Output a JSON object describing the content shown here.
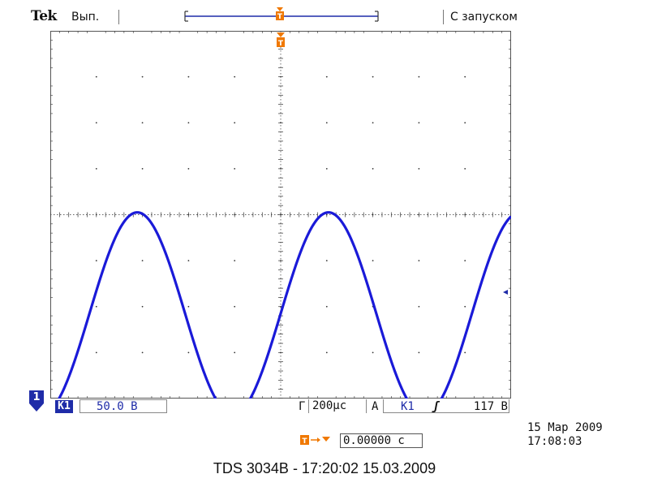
{
  "header": {
    "brand": "Tek",
    "run_status": "Вып.",
    "trigger_mode": "С запуском"
  },
  "channel": {
    "marker_label": "1",
    "badge": "K1",
    "volts_per_div": "50.0 В"
  },
  "horizontal": {
    "label": "Г",
    "time_per_div": "200µс"
  },
  "trigger": {
    "label": "A",
    "source": "K1",
    "slope_glyph": "ʃ",
    "level": "117 В",
    "position": "0.00000 с"
  },
  "timestamp": {
    "date": "15 Мар 2009",
    "time": "17:08:03"
  },
  "caption": "TDS 3034B - 17:20:02   15.03.2009",
  "colors": {
    "trace": "#1a1ad8",
    "trigger_marker": "#f07800",
    "channel_badge": "#1f2ca8",
    "grid": "#333333"
  },
  "chart_data": {
    "type": "line",
    "title": "",
    "xlabel": "",
    "ylabel": "",
    "grid": true,
    "x_divisions": 10,
    "y_divisions": 8,
    "xlim": [
      -5,
      5
    ],
    "ylim": [
      -4,
      4
    ],
    "series": [
      {
        "waveform": "sine",
        "x_unit": "div",
        "y_unit": "div",
        "amplitude_div": 2.2,
        "offset_div": -2.15,
        "period_div": 4.15,
        "phase_zero_crossing_div": 0.0
      }
    ]
  }
}
